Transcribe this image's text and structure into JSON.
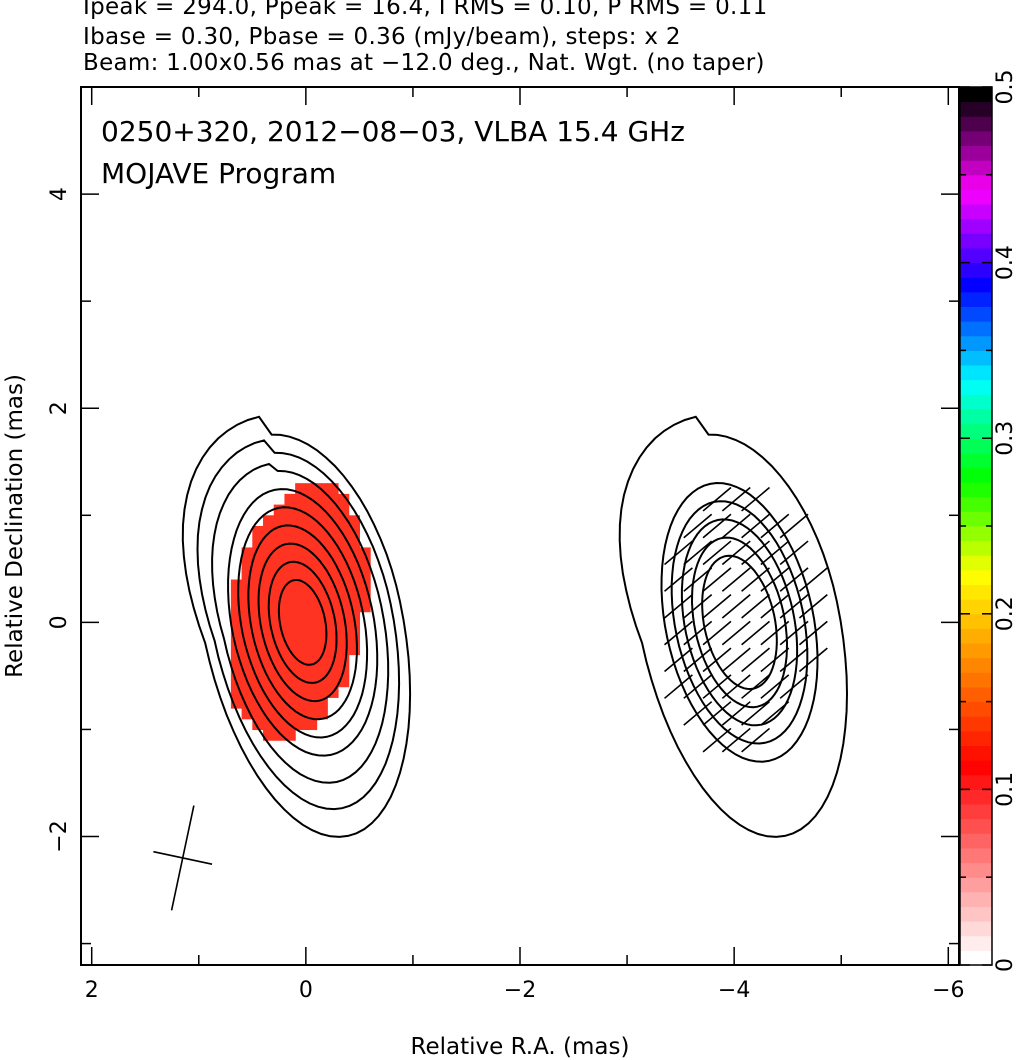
{
  "header": {
    "line1": "Ipeak = 294.0, Ppeak = 16.4, I RMS = 0.10, P RMS = 0.11",
    "line2": "Ibase = 0.30, Pbase = 0.36 (mJy/beam), steps: x 2",
    "line3": "Beam: 1.00x0.56 mas at −12.0 deg., Nat. Wgt. (no taper)"
  },
  "chart_data": {
    "type": "heatmap",
    "title": "0250+320, 2012−08−03, VLBA 15.4 GHz",
    "subtitle": "MOJAVE Program",
    "xlabel": "Relative R.A. (mas)",
    "ylabel": "Relative Declination (mas)",
    "xlim": [
      2.1,
      -6.1
    ],
    "ylim": [
      -3.2,
      5.0
    ],
    "x_ticks": [
      2,
      0,
      -2,
      -4,
      -6
    ],
    "x_tick_labels": [
      "2",
      "0",
      "−2",
      "−4",
      "−6"
    ],
    "y_ticks": [
      -2,
      0,
      2,
      4
    ],
    "y_tick_labels": [
      "−2",
      "0",
      "2",
      "4"
    ],
    "colorbar": {
      "range": [
        0,
        0.5
      ],
      "ticks": [
        0,
        0.1,
        0.2,
        0.3,
        0.4,
        0.5
      ],
      "tick_labels": [
        "0",
        "0.1",
        "0.2",
        "0.3",
        "0.4",
        "0.5"
      ],
      "colors": [
        "#ffffff",
        "#ff8080",
        "#ff0000",
        "#ff8000",
        "#ffff00",
        "#00ff00",
        "#00ffff",
        "#0000ff",
        "#ff00ff",
        "#000000"
      ]
    },
    "panels": [
      {
        "name": "total intensity",
        "center": [
          0.03,
          0.05
        ],
        "peak_mJy_per_beam": 294.0,
        "base_mJy_per_beam": 0.3,
        "contour_step": 2,
        "contour_count": 9,
        "fractional_polarization_fill": 0.08,
        "fill_color": "#ff3322"
      },
      {
        "name": "polarized intensity with EVPA ticks",
        "center": [
          -4.05,
          0.05
        ],
        "peak_mJy_per_beam": 16.4,
        "base_mJy_per_beam": 0.36,
        "contour_step": 2,
        "contour_count": 6,
        "evpa_deg": 40
      }
    ],
    "beam": {
      "major_mas": 1.0,
      "minor_mas": 0.56,
      "pa_deg": -12.0,
      "center": [
        1.15,
        -2.2
      ]
    },
    "grid": false
  }
}
